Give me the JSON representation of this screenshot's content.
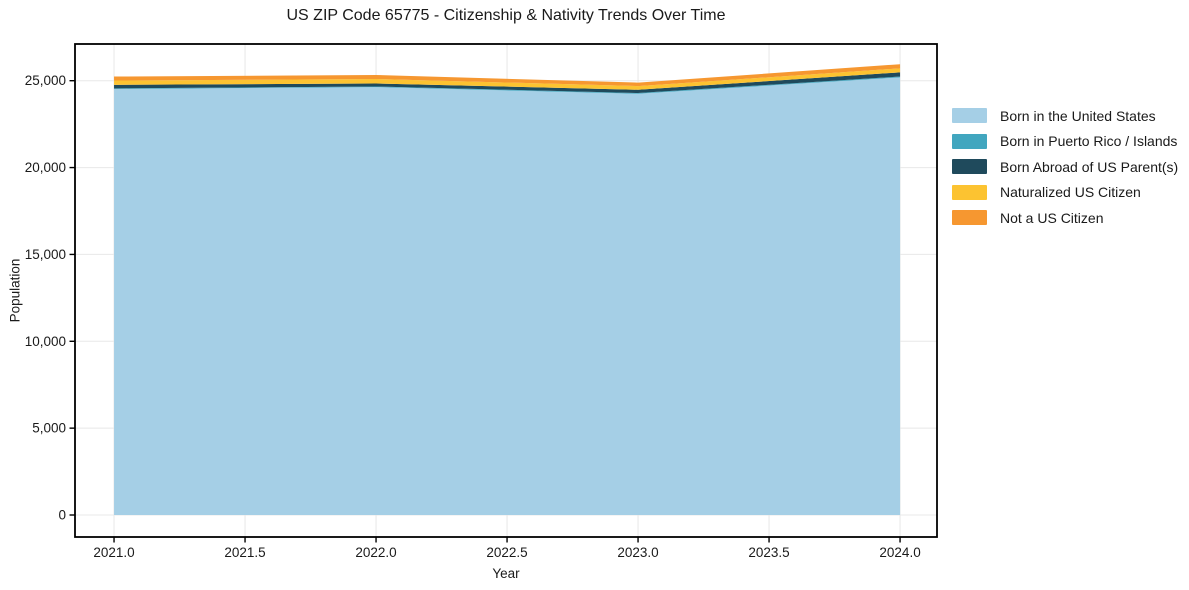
{
  "chart_data": {
    "type": "area",
    "stacked": true,
    "title": "US ZIP Code 65775 - Citizenship & Nativity Trends Over Time",
    "xlabel": "Year",
    "ylabel": "Population",
    "x": [
      2021,
      2022,
      2023,
      2024
    ],
    "series": [
      {
        "name": "Born in the United States",
        "color": "#a5cfe6",
        "values": [
          24520,
          24630,
          24250,
          25190
        ]
      },
      {
        "name": "Born in Puerto Rico / Islands",
        "color": "#41a6bf",
        "values": [
          40,
          40,
          40,
          50
        ]
      },
      {
        "name": "Born Abroad of US Parent(s)",
        "color": "#1f4a5c",
        "values": [
          200,
          170,
          190,
          240
        ]
      },
      {
        "name": "Naturalized US Citizen",
        "color": "#fcc331",
        "values": [
          250,
          260,
          210,
          230
        ]
      },
      {
        "name": "Not a US Citizen",
        "color": "#f69730",
        "values": [
          230,
          230,
          200,
          240
        ]
      }
    ],
    "xlim": [
      2020.851,
      2024.141
    ],
    "ylim": [
      -1266,
      27113
    ],
    "xticks": {
      "values": [
        2021.0,
        2021.5,
        2022.0,
        2022.5,
        2023.0,
        2023.5,
        2024.0
      ],
      "labels": [
        "2021.0",
        "2021.5",
        "2022.0",
        "2022.5",
        "2023.0",
        "2023.5",
        "2024.0"
      ]
    },
    "yticks": {
      "values": [
        0,
        5000,
        10000,
        15000,
        20000,
        25000
      ],
      "labels": [
        "0",
        "5,000",
        "10,000",
        "15,000",
        "20,000",
        "25,000"
      ]
    },
    "legend_position": "right",
    "grid": true,
    "grid_color": "#e8e8e8",
    "axis_color": "#000000",
    "text_color": "#1a1a1a"
  }
}
